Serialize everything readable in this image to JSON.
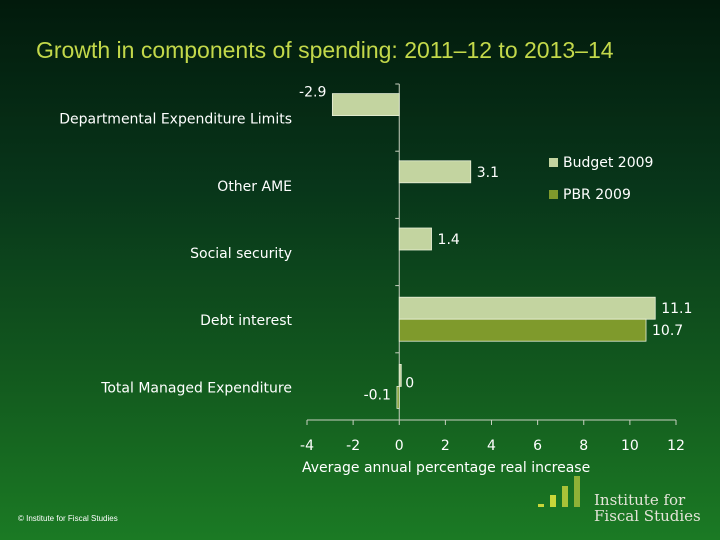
{
  "title": "Growth in components of spending: 2011–12 to 2013–14",
  "footer": "© Institute for Fiscal Studies",
  "logo": {
    "text_line1": "Institute for",
    "text_line2": "Fiscal Studies"
  },
  "colors": {
    "title": "#c3d84a",
    "budget_2009": "#c3d4a0",
    "pbr_2009": "#7f9a2c",
    "text": "#ffffff"
  },
  "chart_data": {
    "type": "bar",
    "orientation": "horizontal",
    "categories": [
      "Departmental Expenditure Limits",
      "Other AME",
      "Social security",
      "Debt interest",
      "Total Managed Expenditure"
    ],
    "series": [
      {
        "name": "Budget 2009",
        "values": [
          -2.9,
          3.1,
          1.4,
          11.1,
          0
        ],
        "labels": [
          "-2.9",
          "3.1",
          "1.4",
          "11.1",
          "0"
        ]
      },
      {
        "name": "PBR 2009",
        "values": [
          null,
          null,
          null,
          10.7,
          -0.1
        ],
        "labels": [
          null,
          null,
          null,
          "10.7",
          "-0.1"
        ]
      }
    ],
    "xlabel": "Average annual percentage real increase",
    "xlim": [
      -4,
      12
    ],
    "xticks": [
      "-4",
      "-2",
      "0",
      "2",
      "4",
      "6",
      "8",
      "10",
      "12"
    ],
    "legend_position": "right",
    "grid": false
  }
}
